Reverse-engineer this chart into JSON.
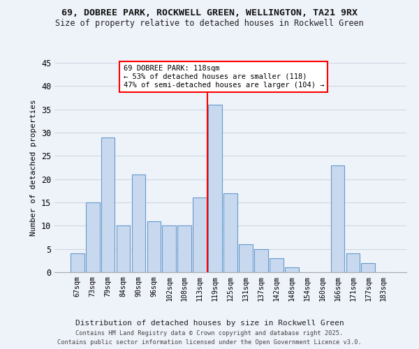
{
  "title_line1": "69, DOBREE PARK, ROCKWELL GREEN, WELLINGTON, TA21 9RX",
  "title_line2": "Size of property relative to detached houses in Rockwell Green",
  "xlabel": "Distribution of detached houses by size in Rockwell Green",
  "ylabel": "Number of detached properties",
  "categories": [
    "67sqm",
    "73sqm",
    "79sqm",
    "84sqm",
    "90sqm",
    "96sqm",
    "102sqm",
    "108sqm",
    "113sqm",
    "119sqm",
    "125sqm",
    "131sqm",
    "137sqm",
    "142sqm",
    "148sqm",
    "154sqm",
    "160sqm",
    "166sqm",
    "171sqm",
    "177sqm",
    "183sqm"
  ],
  "values": [
    4,
    15,
    29,
    10,
    21,
    11,
    10,
    10,
    16,
    36,
    17,
    6,
    5,
    3,
    1,
    0,
    0,
    23,
    4,
    2,
    0
  ],
  "bar_color": "#c8d9ef",
  "bar_edge_color": "#6699cc",
  "grid_color": "#d0d8e4",
  "vline_x_index": 9,
  "vline_color": "red",
  "annotation_text": "69 DOBREE PARK: 118sqm\n← 53% of detached houses are smaller (118)\n47% of semi-detached houses are larger (104) →",
  "annotation_box_color": "white",
  "annotation_box_edge": "red",
  "ylim": [
    0,
    45
  ],
  "yticks": [
    0,
    5,
    10,
    15,
    20,
    25,
    30,
    35,
    40,
    45
  ],
  "footer_line1": "Contains HM Land Registry data © Crown copyright and database right 2025.",
  "footer_line2": "Contains public sector information licensed under the Open Government Licence v3.0.",
  "bg_color": "#eef2f9"
}
